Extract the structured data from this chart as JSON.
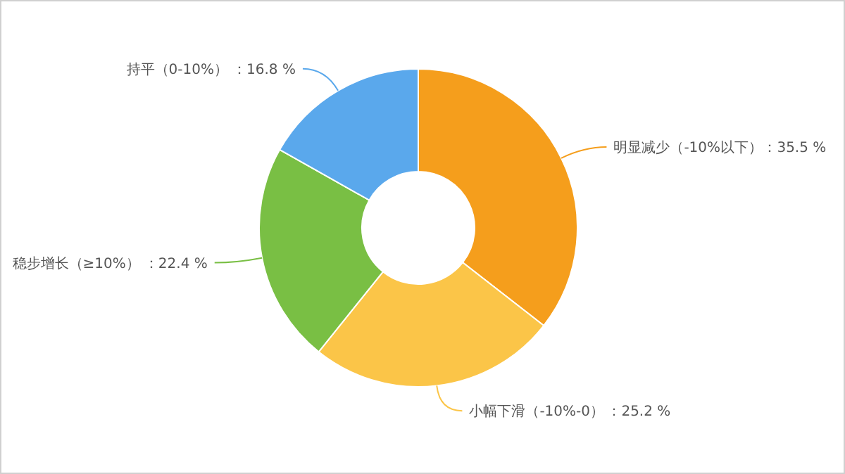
{
  "chart_data": {
    "type": "donut",
    "categories": [
      "明显减少（-10%以下）",
      "小幅下滑（-10%-0）",
      "稳步增长（≥10%）",
      "持平（0-10%）"
    ],
    "values": [
      35.5,
      25.2,
      22.4,
      16.8
    ],
    "colors": [
      "#f59e1c",
      "#fbc548",
      "#79bf44",
      "#5aa8ec"
    ],
    "value_labels": [
      "：35.5 %",
      "：25.2 %",
      "：22.4 %",
      "：16.8 %"
    ]
  }
}
